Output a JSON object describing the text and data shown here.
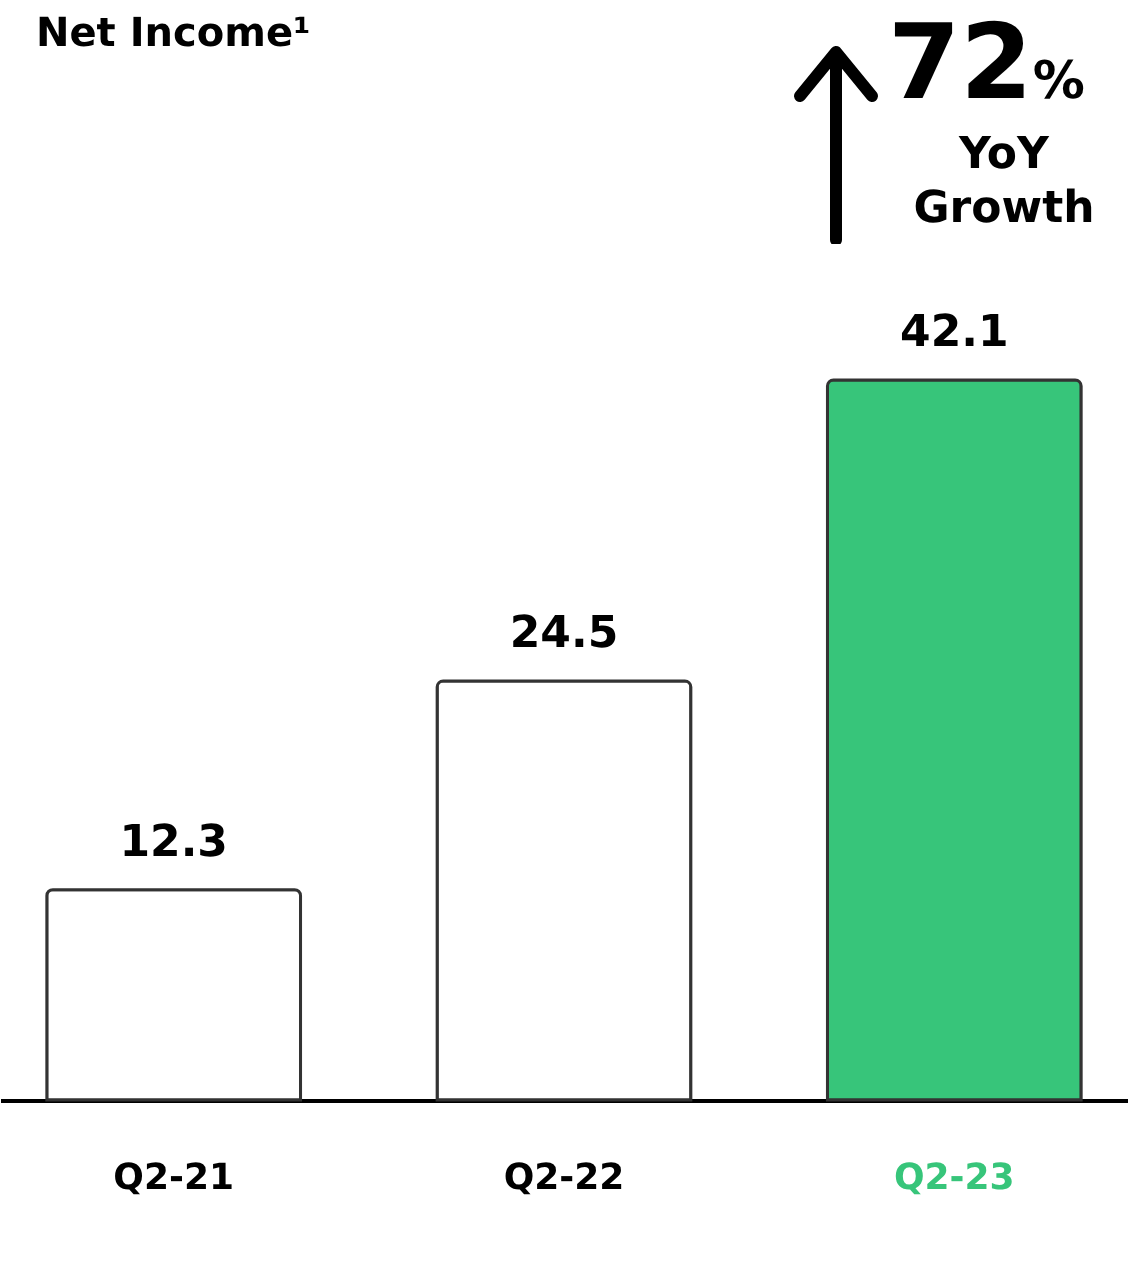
{
  "chart_data": {
    "type": "bar",
    "title": "Net Income¹",
    "annotations": [
      "72%",
      "YoY Growth"
    ],
    "categories": [
      "Q2-21",
      "Q2-22",
      "Q2-23"
    ],
    "values": [
      12.3,
      24.5,
      42.1
    ],
    "colors": [
      "#ffffff",
      "#ffffff",
      "#37c57a"
    ],
    "data_labels": true
  }
}
